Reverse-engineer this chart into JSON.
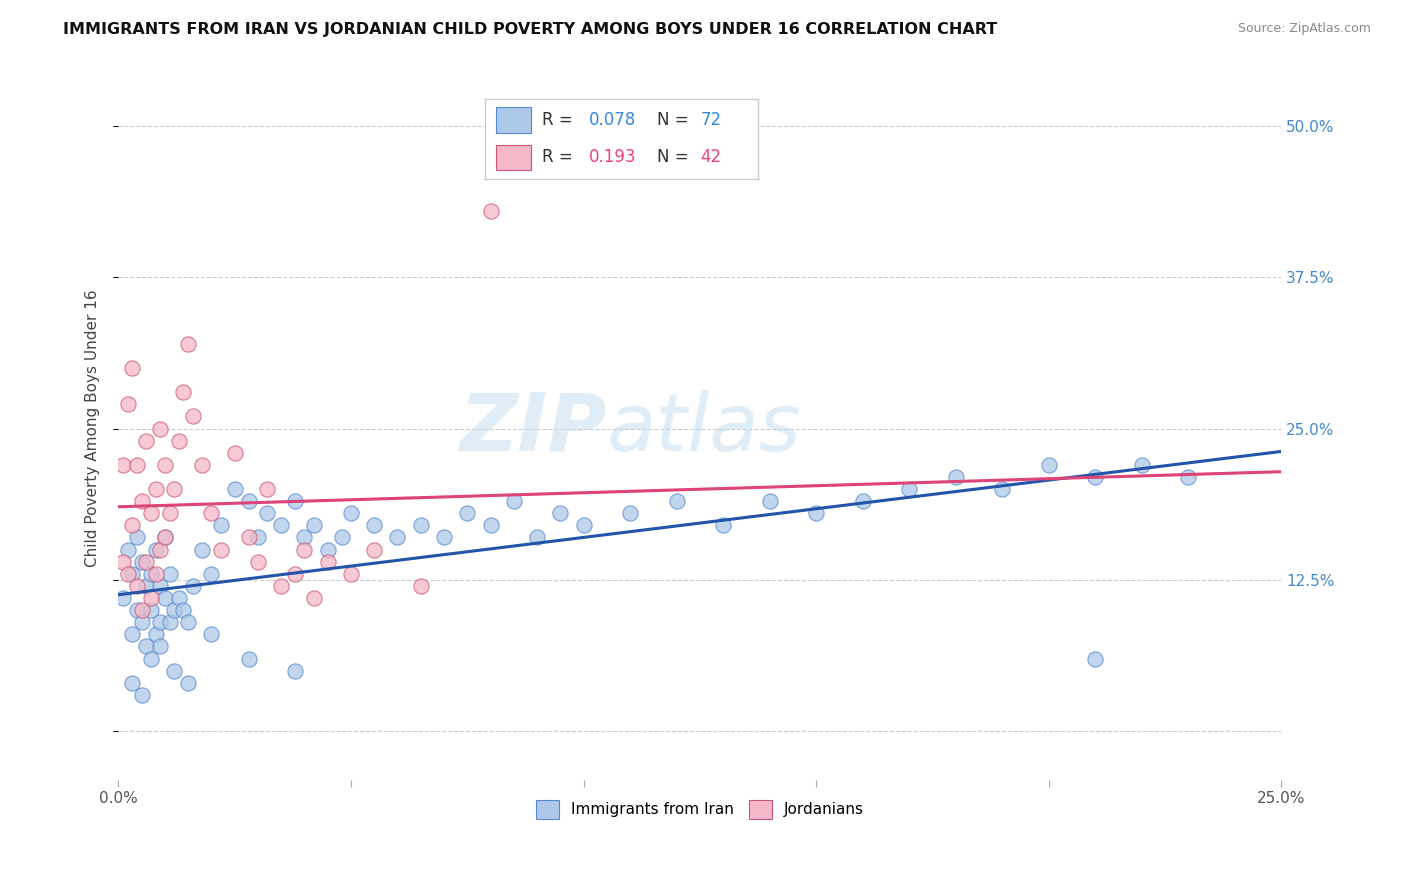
{
  "title": "IMMIGRANTS FROM IRAN VS JORDANIAN CHILD POVERTY AMONG BOYS UNDER 16 CORRELATION CHART",
  "source": "Source: ZipAtlas.com",
  "ylabel": "Child Poverty Among Boys Under 16",
  "xlim": [
    0.0,
    0.25
  ],
  "ylim": [
    -0.04,
    0.54
  ],
  "yticks": [
    0.0,
    0.125,
    0.25,
    0.375,
    0.5
  ],
  "yticklabels": [
    "",
    "12.5%",
    "25.0%",
    "37.5%",
    "50.0%"
  ],
  "xtick_positions": [
    0.0,
    0.05,
    0.1,
    0.15,
    0.2,
    0.25
  ],
  "xticklabels": [
    "0.0%",
    "",
    "",
    "",
    "",
    "25.0%"
  ],
  "color_iran": "#adc8e8",
  "color_jordan": "#f5b8c8",
  "edge_iran": "#5588cc",
  "edge_jordan": "#cc5577",
  "line_iran": "#2255aa",
  "line_jordan": "#dd4477",
  "watermark_color": "#cde4f5",
  "bottom_legend_iran": "Immigrants from Iran",
  "bottom_legend_jordan": "Jordanians",
  "R1": "0.078",
  "N1": "72",
  "R2": "0.193",
  "N2": "42",
  "iran_x": [
    0.001,
    0.002,
    0.003,
    0.003,
    0.004,
    0.004,
    0.005,
    0.005,
    0.006,
    0.006,
    0.007,
    0.007,
    0.008,
    0.008,
    0.009,
    0.009,
    0.01,
    0.01,
    0.011,
    0.011,
    0.012,
    0.013,
    0.014,
    0.015,
    0.016,
    0.018,
    0.02,
    0.022,
    0.025,
    0.028,
    0.03,
    0.032,
    0.035,
    0.038,
    0.04,
    0.042,
    0.045,
    0.048,
    0.05,
    0.055,
    0.06,
    0.065,
    0.07,
    0.075,
    0.08,
    0.085,
    0.09,
    0.095,
    0.1,
    0.11,
    0.12,
    0.13,
    0.14,
    0.15,
    0.16,
    0.17,
    0.18,
    0.19,
    0.2,
    0.21,
    0.22,
    0.23,
    0.003,
    0.005,
    0.007,
    0.009,
    0.012,
    0.015,
    0.02,
    0.028,
    0.038,
    0.21
  ],
  "iran_y": [
    0.11,
    0.15,
    0.08,
    0.13,
    0.1,
    0.16,
    0.09,
    0.14,
    0.07,
    0.12,
    0.1,
    0.13,
    0.08,
    0.15,
    0.09,
    0.12,
    0.11,
    0.16,
    0.09,
    0.13,
    0.1,
    0.11,
    0.1,
    0.09,
    0.12,
    0.15,
    0.13,
    0.17,
    0.2,
    0.19,
    0.16,
    0.18,
    0.17,
    0.19,
    0.16,
    0.17,
    0.15,
    0.16,
    0.18,
    0.17,
    0.16,
    0.17,
    0.16,
    0.18,
    0.17,
    0.19,
    0.16,
    0.18,
    0.17,
    0.18,
    0.19,
    0.17,
    0.19,
    0.18,
    0.19,
    0.2,
    0.21,
    0.2,
    0.22,
    0.21,
    0.22,
    0.21,
    0.04,
    0.03,
    0.06,
    0.07,
    0.05,
    0.04,
    0.08,
    0.06,
    0.05,
    0.06
  ],
  "jordan_x": [
    0.001,
    0.001,
    0.002,
    0.002,
    0.003,
    0.003,
    0.004,
    0.004,
    0.005,
    0.005,
    0.006,
    0.006,
    0.007,
    0.007,
    0.008,
    0.008,
    0.009,
    0.009,
    0.01,
    0.01,
    0.011,
    0.012,
    0.013,
    0.014,
    0.015,
    0.016,
    0.018,
    0.02,
    0.022,
    0.025,
    0.028,
    0.03,
    0.032,
    0.035,
    0.038,
    0.04,
    0.042,
    0.045,
    0.05,
    0.055,
    0.065,
    0.08
  ],
  "jordan_y": [
    0.22,
    0.14,
    0.27,
    0.13,
    0.3,
    0.17,
    0.22,
    0.12,
    0.19,
    0.1,
    0.24,
    0.14,
    0.18,
    0.11,
    0.2,
    0.13,
    0.25,
    0.15,
    0.22,
    0.16,
    0.18,
    0.2,
    0.24,
    0.28,
    0.32,
    0.26,
    0.22,
    0.18,
    0.15,
    0.23,
    0.16,
    0.14,
    0.2,
    0.12,
    0.13,
    0.15,
    0.11,
    0.14,
    0.13,
    0.15,
    0.12,
    0.43
  ]
}
